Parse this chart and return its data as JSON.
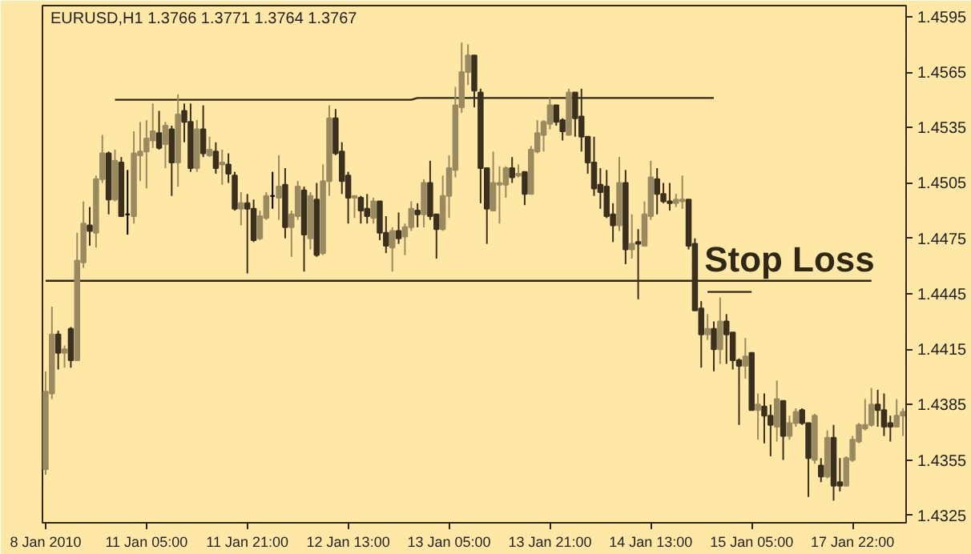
{
  "chart_data": {
    "type": "candlestick",
    "title": "EURUSD,H1  1.3766 1.3771 1.3764 1.3767",
    "categories": [
      "8 Jan 2010",
      null,
      null,
      null,
      null,
      null,
      null,
      null,
      null,
      null,
      null,
      null,
      null,
      null,
      null,
      null,
      "11 Jan 05:00",
      null,
      null,
      null,
      null,
      null,
      null,
      null,
      null,
      null,
      null,
      null,
      null,
      null,
      null,
      null,
      "11 Jan 21:00",
      null,
      null,
      null,
      null,
      null,
      null,
      null,
      null,
      null,
      null,
      null,
      null,
      null,
      null,
      null,
      "12 Jan 13:00",
      null,
      null,
      null,
      null,
      null,
      null,
      null,
      null,
      null,
      null,
      null,
      null,
      null,
      null,
      null,
      "13 Jan 05:00",
      null,
      null,
      null,
      null,
      null,
      null,
      null,
      null,
      null,
      null,
      null,
      null,
      null,
      null,
      null,
      "13 Jan 21:00",
      null,
      null,
      null,
      null,
      null,
      null,
      null,
      null,
      null,
      null,
      null,
      null,
      null,
      null,
      null,
      "14 Jan 13:00",
      null,
      null,
      null,
      null,
      null,
      null,
      null,
      null,
      null,
      null,
      null,
      null,
      null,
      null,
      null,
      "15 Jan 05:00",
      null,
      null,
      null,
      null,
      null,
      null,
      null,
      null,
      null,
      null,
      null,
      null,
      null,
      null,
      null,
      "17 Jan 22:00",
      null,
      null,
      null,
      null,
      null,
      null,
      null,
      null
    ],
    "ohlc": [
      [
        1.435,
        1.4403,
        1.4347,
        1.4392
      ],
      [
        1.4391,
        1.4438,
        1.4388,
        1.4423
      ],
      [
        1.4423,
        1.4425,
        1.4404,
        1.4413
      ],
      [
        1.4413,
        1.4417,
        1.4405,
        1.4415
      ],
      [
        1.4426,
        1.4427,
        1.4405,
        1.4409
      ],
      [
        1.4409,
        1.4478,
        1.4409,
        1.4463
      ],
      [
        1.4462,
        1.4495,
        1.4459,
        1.4483
      ],
      [
        1.4482,
        1.4492,
        1.4471,
        1.4479
      ],
      [
        1.4478,
        1.4509,
        1.447,
        1.4507
      ],
      [
        1.4507,
        1.4531,
        1.4505,
        1.4521
      ],
      [
        1.4521,
        1.4522,
        1.4488,
        1.4496
      ],
      [
        1.4496,
        1.4523,
        1.4495,
        1.4517
      ],
      [
        1.4516,
        1.4519,
        1.4487,
        1.4487
      ],
      [
        1.4488,
        1.4512,
        1.4477,
        1.4488
      ],
      [
        1.4487,
        1.4533,
        1.4483,
        1.4521
      ],
      [
        1.452,
        1.4538,
        1.4506,
        1.4522
      ],
      [
        1.4522,
        1.4539,
        1.4502,
        1.4529
      ],
      [
        1.4528,
        1.4548,
        1.4524,
        1.4533
      ],
      [
        1.4532,
        1.4544,
        1.4523,
        1.4524
      ],
      [
        1.4526,
        1.4538,
        1.4513,
        1.4536
      ],
      [
        1.4534,
        1.4536,
        1.4498,
        1.4516
      ],
      [
        1.4516,
        1.4553,
        1.4503,
        1.4542
      ],
      [
        1.4544,
        1.4548,
        1.4527,
        1.4538
      ],
      [
        1.4538,
        1.4548,
        1.4511,
        1.4513
      ],
      [
        1.4513,
        1.4539,
        1.4511,
        1.4534
      ],
      [
        1.4534,
        1.4547,
        1.4519,
        1.4521
      ],
      [
        1.452,
        1.453,
        1.4519,
        1.4523
      ],
      [
        1.4522,
        1.4527,
        1.451,
        1.4513
      ],
      [
        1.4515,
        1.4523,
        1.4504,
        1.4516
      ],
      [
        1.4515,
        1.4521,
        1.4505,
        1.451
      ],
      [
        1.4509,
        1.4511,
        1.449,
        1.4491
      ],
      [
        1.4491,
        1.45,
        1.4482,
        1.4494
      ],
      [
        1.4494,
        1.4499,
        1.4456,
        1.4491
      ],
      [
        1.4491,
        1.4496,
        1.4473,
        1.4474
      ],
      [
        1.4475,
        1.449,
        1.4474,
        1.4487
      ],
      [
        1.4486,
        1.45,
        1.4485,
        1.4498
      ],
      [
        1.4498,
        1.4511,
        1.4491,
        1.4498
      ],
      [
        1.4497,
        1.452,
        1.4485,
        1.4503
      ],
      [
        1.4504,
        1.4513,
        1.4475,
        1.4481
      ],
      [
        1.4481,
        1.449,
        1.4465,
        1.4488
      ],
      [
        1.4487,
        1.4506,
        1.4485,
        1.4503
      ],
      [
        1.4501,
        1.4503,
        1.4457,
        1.4477
      ],
      [
        1.4475,
        1.45,
        1.4469,
        1.4498
      ],
      [
        1.4496,
        1.4505,
        1.4465,
        1.4466
      ],
      [
        1.4467,
        1.4515,
        1.4466,
        1.4506
      ],
      [
        1.4506,
        1.4547,
        1.4498,
        1.454
      ],
      [
        1.454,
        1.4545,
        1.452,
        1.4521
      ],
      [
        1.4522,
        1.4527,
        1.4499,
        1.4506
      ],
      [
        1.4509,
        1.4511,
        1.4483,
        1.4497
      ],
      [
        1.4497,
        1.4498,
        1.4486,
        1.4498
      ],
      [
        1.4497,
        1.4498,
        1.4483,
        1.449
      ],
      [
        1.4491,
        1.4499,
        1.4483,
        1.4487
      ],
      [
        1.4486,
        1.4497,
        1.4483,
        1.4495
      ],
      [
        1.4495,
        1.4495,
        1.4474,
        1.4478
      ],
      [
        1.4478,
        1.4487,
        1.4467,
        1.4471
      ],
      [
        1.447,
        1.4481,
        1.4457,
        1.4479
      ],
      [
        1.4479,
        1.4489,
        1.4472,
        1.4475
      ],
      [
        1.4476,
        1.4483,
        1.4466,
        1.4481
      ],
      [
        1.4481,
        1.4495,
        1.4479,
        1.4491
      ],
      [
        1.449,
        1.4494,
        1.4481,
        1.4488
      ],
      [
        1.4488,
        1.4507,
        1.4481,
        1.4505
      ],
      [
        1.4505,
        1.4517,
        1.4485,
        1.4487
      ],
      [
        1.4488,
        1.4488,
        1.4464,
        1.448
      ],
      [
        1.448,
        1.4509,
        1.4479,
        1.4498
      ],
      [
        1.4498,
        1.452,
        1.4486,
        1.4513
      ],
      [
        1.4512,
        1.4557,
        1.4508,
        1.4547
      ],
      [
        1.4546,
        1.4581,
        1.4543,
        1.4565
      ],
      [
        1.4565,
        1.458,
        1.4558,
        1.4574
      ],
      [
        1.4574,
        1.4574,
        1.4546,
        1.4555
      ],
      [
        1.4554,
        1.4556,
        1.4494,
        1.4513
      ],
      [
        1.4513,
        1.4513,
        1.4472,
        1.4491
      ],
      [
        1.449,
        1.4522,
        1.449,
        1.4505
      ],
      [
        1.4504,
        1.4514,
        1.4483,
        1.4505
      ],
      [
        1.4504,
        1.4514,
        1.4497,
        1.4513
      ],
      [
        1.4513,
        1.4519,
        1.4505,
        1.4508
      ],
      [
        1.4509,
        1.4515,
        1.4508,
        1.451
      ],
      [
        1.4511,
        1.4511,
        1.4493,
        1.4499
      ],
      [
        1.4499,
        1.4525,
        1.4499,
        1.4523
      ],
      [
        1.4522,
        1.4539,
        1.4521,
        1.4532
      ],
      [
        1.4531,
        1.4539,
        1.4522,
        1.4538
      ],
      [
        1.4537,
        1.4551,
        1.4534,
        1.4547
      ],
      [
        1.4547,
        1.4547,
        1.4536,
        1.4538
      ],
      [
        1.4539,
        1.454,
        1.4528,
        1.4533
      ],
      [
        1.4531,
        1.4556,
        1.4531,
        1.4554
      ],
      [
        1.4554,
        1.4554,
        1.453,
        1.454
      ],
      [
        1.4541,
        1.4556,
        1.4522,
        1.453
      ],
      [
        1.453,
        1.453,
        1.451,
        1.4516
      ],
      [
        1.4516,
        1.453,
        1.4498,
        1.4502
      ],
      [
        1.4504,
        1.4513,
        1.4491,
        1.45
      ],
      [
        1.4503,
        1.4512,
        1.4486,
        1.4487
      ],
      [
        1.4488,
        1.4494,
        1.4473,
        1.4482
      ],
      [
        1.4482,
        1.4519,
        1.4479,
        1.4505
      ],
      [
        1.4505,
        1.4512,
        1.4461,
        1.4469
      ],
      [
        1.4469,
        1.4488,
        1.4464,
        1.4472
      ],
      [
        1.4473,
        1.448,
        1.4442,
        1.4472
      ],
      [
        1.4471,
        1.4495,
        1.4471,
        1.4488
      ],
      [
        1.4487,
        1.4517,
        1.4485,
        1.4508
      ],
      [
        1.4507,
        1.4513,
        1.4488,
        1.4499
      ],
      [
        1.4499,
        1.4505,
        1.4494,
        1.4495
      ],
      [
        1.4495,
        1.4505,
        1.449,
        1.4494
      ],
      [
        1.4494,
        1.4499,
        1.4492,
        1.4496
      ],
      [
        1.4495,
        1.4509,
        1.4491,
        1.4496
      ],
      [
        1.4496,
        1.4496,
        1.4469,
        1.4471
      ],
      [
        1.4472,
        1.4475,
        1.4436,
        1.4436
      ],
      [
        1.4437,
        1.4441,
        1.4405,
        1.4423
      ],
      [
        1.4423,
        1.4434,
        1.442,
        1.4426
      ],
      [
        1.4426,
        1.443,
        1.4403,
        1.4415
      ],
      [
        1.4415,
        1.4443,
        1.4407,
        1.443
      ],
      [
        1.443,
        1.4434,
        1.4407,
        1.4423
      ],
      [
        1.4424,
        1.4424,
        1.4404,
        1.4409
      ],
      [
        1.4409,
        1.441,
        1.4374,
        1.4406
      ],
      [
        1.4406,
        1.4421,
        1.4399,
        1.4411
      ],
      [
        1.4413,
        1.4413,
        1.4382,
        1.4382
      ],
      [
        1.4382,
        1.4391,
        1.4366,
        1.4385
      ],
      [
        1.4384,
        1.4391,
        1.4364,
        1.4379
      ],
      [
        1.4379,
        1.4385,
        1.4357,
        1.4374
      ],
      [
        1.4373,
        1.4398,
        1.4365,
        1.4388
      ],
      [
        1.4387,
        1.4387,
        1.4355,
        1.4368
      ],
      [
        1.4368,
        1.4379,
        1.4366,
        1.4375
      ],
      [
        1.4375,
        1.4383,
        1.4373,
        1.4381
      ],
      [
        1.4382,
        1.4383,
        1.4374,
        1.4375
      ],
      [
        1.4375,
        1.4375,
        1.4335,
        1.4356
      ],
      [
        1.4355,
        1.438,
        1.4353,
        1.4379
      ],
      [
        1.4352,
        1.4356,
        1.4343,
        1.4346
      ],
      [
        1.4346,
        1.4371,
        1.4345,
        1.4367
      ],
      [
        1.4367,
        1.4374,
        1.4333,
        1.4341
      ],
      [
        1.4343,
        1.4356,
        1.4338,
        1.4341
      ],
      [
        1.4341,
        1.4357,
        1.4341,
        1.4356
      ],
      [
        1.4355,
        1.4368,
        1.4354,
        1.4366
      ],
      [
        1.4365,
        1.4375,
        1.4364,
        1.4374
      ],
      [
        1.4372,
        1.4388,
        1.4371,
        1.4374
      ],
      [
        1.4374,
        1.4394,
        1.4373,
        1.4385
      ],
      [
        1.4385,
        1.4393,
        1.4373,
        1.4382
      ],
      [
        1.4382,
        1.4391,
        1.4368,
        1.4373
      ],
      [
        1.4375,
        1.4379,
        1.4365,
        1.4373
      ],
      [
        1.4373,
        1.4388,
        1.4373,
        1.4379
      ],
      [
        1.4379,
        1.4383,
        1.4368,
        1.4381
      ]
    ],
    "colors": [
      "#9a8a60",
      "#9a8a60",
      "#3a3020",
      "#9a8a60",
      "#3a3020",
      "#9a8a60",
      "#9a8a60",
      "#3a3020",
      "#9a8a60",
      "#9a8a60",
      "#3a3020",
      "#9a8a60",
      "#3a3020",
      "#000000",
      "#9a8a60",
      "#9a8a60",
      "#9a8a60",
      "#9a8a60",
      "#3a3020",
      "#9a8a60",
      "#3a3020",
      "#9a8a60",
      "#3a3020",
      "#3a3020",
      "#9a8a60",
      "#3a3020",
      "#9a8a60",
      "#3a3020",
      "#9a8a60",
      "#3a3020",
      "#3a3020",
      "#9a8a60",
      "#3a3020",
      "#3a3020",
      "#9a8a60",
      "#9a8a60",
      "#000000",
      "#9a8a60",
      "#3a3020",
      "#9a8a60",
      "#9a8a60",
      "#3a3020",
      "#9a8a60",
      "#3a3020",
      "#9a8a60",
      "#9a8a60",
      "#3a3020",
      "#3a3020",
      "#3a3020",
      "#9a8a60",
      "#3a3020",
      "#3a3020",
      "#9a8a60",
      "#3a3020",
      "#3a3020",
      "#9a8a60",
      "#3a3020",
      "#9a8a60",
      "#9a8a60",
      "#3a3020",
      "#9a8a60",
      "#3a3020",
      "#3a3020",
      "#9a8a60",
      "#9a8a60",
      "#9a8a60",
      "#9a8a60",
      "#9a8a60",
      "#3a3020",
      "#3a3020",
      "#3a3020",
      "#9a8a60",
      "#9a8a60",
      "#9a8a60",
      "#3a3020",
      "#9a8a60",
      "#3a3020",
      "#9a8a60",
      "#9a8a60",
      "#9a8a60",
      "#9a8a60",
      "#3a3020",
      "#3a3020",
      "#9a8a60",
      "#3a3020",
      "#3a3020",
      "#3a3020",
      "#3a3020",
      "#3a3020",
      "#3a3020",
      "#3a3020",
      "#9a8a60",
      "#3a3020",
      "#9a8a60",
      "#3a3020",
      "#9a8a60",
      "#9a8a60",
      "#3a3020",
      "#3a3020",
      "#3a3020",
      "#9a8a60",
      "#9a8a60",
      "#3a3020",
      "#3a3020",
      "#3a3020",
      "#9a8a60",
      "#3a3020",
      "#9a8a60",
      "#3a3020",
      "#3a3020",
      "#3a3020",
      "#9a8a60",
      "#3a3020",
      "#9a8a60",
      "#3a3020",
      "#3a3020",
      "#9a8a60",
      "#3a3020",
      "#9a8a60",
      "#9a8a60",
      "#3a3020",
      "#3a3020",
      "#9a8a60",
      "#3a3020",
      "#9a8a60",
      "#3a3020",
      "#3a3020",
      "#9a8a60",
      "#9a8a60",
      "#9a8a60",
      "#9a8a60",
      "#9a8a60",
      "#3a3020",
      "#3a3020",
      "#3a3020",
      "#9a8a60",
      "#9a8a60"
    ],
    "series": [
      {
        "type": "line",
        "color": "#2e2818",
        "values": [
          null,
          null,
          null,
          null,
          null,
          null,
          null,
          null,
          null,
          null,
          null,
          1.455,
          1.455,
          1.455,
          1.455,
          1.455,
          1.455,
          1.455,
          1.455,
          1.455,
          1.455,
          1.455,
          1.455,
          1.455,
          1.455,
          1.455,
          1.455,
          1.455,
          1.455,
          1.455,
          1.455,
          1.455,
          1.455,
          1.455,
          1.455,
          1.455,
          1.455,
          1.455,
          1.455,
          1.455,
          1.455,
          1.455,
          1.455,
          1.455,
          1.455,
          1.455,
          1.455,
          1.455,
          1.455,
          1.455,
          1.455,
          1.455,
          1.455,
          1.455,
          1.455,
          1.455,
          1.455,
          1.455,
          1.455,
          1.4551,
          1.4551,
          1.4551,
          1.4551,
          1.4551,
          1.4551,
          1.4551,
          1.4551,
          1.4551,
          1.4551,
          1.4551,
          1.4551,
          1.4551,
          1.4551,
          1.4551,
          1.4551,
          1.4551,
          1.4551,
          1.4551,
          1.4551,
          1.4551,
          1.4551,
          1.4551,
          1.4551,
          1.4551,
          1.4551,
          1.4551,
          1.4551,
          1.4551,
          1.4551,
          1.4551,
          1.4551,
          1.4551,
          1.4551,
          1.4551,
          1.4551,
          1.4551,
          1.4551,
          1.4551,
          1.4551,
          1.4551,
          1.4551,
          1.4551,
          1.4551,
          1.4551,
          1.4551,
          1.4551,
          1.4551,
          null,
          null,
          null,
          null,
          null,
          null,
          null,
          null,
          null,
          null,
          null,
          null,
          null,
          null,
          null,
          null,
          null,
          null,
          null,
          null,
          null,
          null,
          null,
          null,
          null,
          null,
          null,
          null,
          null,
          null
        ]
      },
      {
        "type": "line",
        "color": "#2e2818",
        "values": [
          1.4452,
          1.4452,
          1.4452,
          1.4452,
          1.4452,
          1.4452,
          1.4452,
          1.4452,
          1.4452,
          1.4452,
          1.4452,
          1.4452,
          1.4452,
          1.4452,
          1.4452,
          1.4452,
          1.4452,
          1.4452,
          1.4452,
          1.4452,
          1.4452,
          1.4452,
          1.4452,
          1.4452,
          1.4452,
          1.4452,
          1.4452,
          1.4452,
          1.4452,
          1.4452,
          1.4452,
          1.4452,
          1.4452,
          1.4452,
          1.4452,
          1.4452,
          1.4452,
          1.4452,
          1.4452,
          1.4452,
          1.4452,
          1.4452,
          1.4452,
          1.4452,
          1.4452,
          1.4452,
          1.4452,
          1.4452,
          1.4452,
          1.4452,
          1.4452,
          1.4452,
          1.4452,
          1.4452,
          1.4452,
          1.4452,
          1.4452,
          1.4452,
          1.4452,
          1.4452,
          1.4452,
          1.4452,
          1.4452,
          1.4452,
          1.4452,
          1.4452,
          1.4452,
          1.4452,
          1.4452,
          1.4452,
          1.4452,
          1.4452,
          1.4452,
          1.4452,
          1.4452,
          1.4452,
          1.4452,
          1.4452,
          1.4452,
          1.4452,
          1.4452,
          1.4452,
          1.4452,
          1.4452,
          1.4452,
          1.4452,
          1.4452,
          1.4452,
          1.4452,
          1.4452,
          1.4452,
          1.4452,
          1.4452,
          1.4452,
          1.4452,
          1.4452,
          1.4452,
          1.4452,
          1.4452,
          1.4452,
          1.4452,
          1.4452,
          1.4452,
          1.4452,
          1.4452,
          1.4452,
          1.4452,
          1.4452,
          1.4452,
          1.4452,
          1.4452,
          1.4452,
          1.4452,
          1.4452,
          1.4452,
          1.4452,
          1.4452,
          1.4452,
          1.4452,
          1.4452,
          1.4452,
          1.4452,
          1.4452,
          1.4452,
          1.4452,
          1.4452,
          1.4452,
          1.4452,
          1.4452,
          1.4452,
          1.4452,
          1.4452,
          null,
          null,
          null,
          null,
          null
        ]
      },
      {
        "type": "line",
        "name": "Stop Loss",
        "color": "#2e2818",
        "values": [
          null,
          null,
          null,
          null,
          null,
          null,
          null,
          null,
          null,
          null,
          null,
          null,
          null,
          null,
          null,
          null,
          null,
          null,
          null,
          null,
          null,
          null,
          null,
          null,
          null,
          null,
          null,
          null,
          null,
          null,
          null,
          null,
          null,
          null,
          null,
          null,
          null,
          null,
          null,
          null,
          null,
          null,
          null,
          null,
          null,
          null,
          null,
          null,
          null,
          null,
          null,
          null,
          null,
          null,
          null,
          null,
          null,
          null,
          null,
          null,
          null,
          null,
          null,
          null,
          null,
          null,
          null,
          null,
          null,
          null,
          null,
          null,
          null,
          null,
          null,
          null,
          null,
          null,
          null,
          null,
          null,
          null,
          null,
          null,
          null,
          null,
          null,
          null,
          null,
          null,
          null,
          null,
          null,
          null,
          null,
          null,
          null,
          null,
          null,
          null,
          null,
          null,
          null,
          null,
          null,
          1.4446,
          1.4446,
          1.4446,
          1.4446,
          1.4446,
          1.4446,
          1.4446,
          1.4446,
          null,
          null,
          null,
          null,
          null,
          null,
          null,
          null,
          null,
          null,
          null,
          null,
          null,
          null,
          null,
          null,
          null,
          null,
          null,
          null,
          null,
          null,
          null,
          null
        ]
      }
    ],
    "ylim": [
      1.4321,
      1.4601
    ],
    "yticks": [
      {
        "value": 1.4595,
        "label": "1.4595"
      },
      {
        "value": 1.4565,
        "label": "1.4565"
      },
      {
        "value": 1.4535,
        "label": "1.4535"
      },
      {
        "value": 1.4505,
        "label": "1.4505"
      },
      {
        "value": 1.4475,
        "label": "1.4475"
      },
      {
        "value": 1.4445,
        "label": "1.4445"
      },
      {
        "value": 1.4415,
        "label": "1.4415"
      },
      {
        "value": 1.4385,
        "label": "1.4385"
      },
      {
        "value": 1.4355,
        "label": "1.4355"
      },
      {
        "value": 1.4325,
        "label": "1.4325"
      }
    ],
    "grid": false
  }
}
